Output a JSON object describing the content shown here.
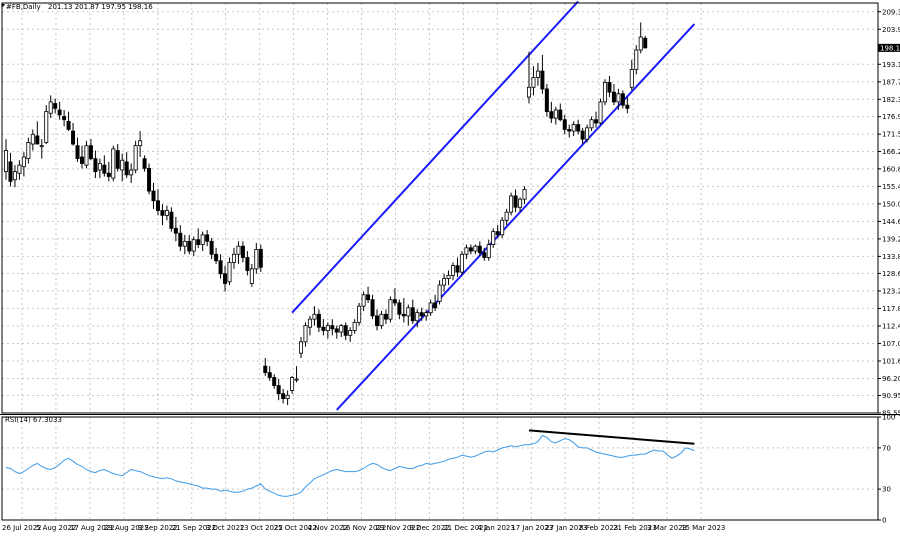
{
  "header": {
    "symbol_label": "#FB,Daily",
    "ohlc_label": "201.13 201.87 197.95 198.16"
  },
  "colors": {
    "background": "#ffffff",
    "candle_border": "#000000",
    "bull_fill": "#ffffff",
    "bear_fill": "#000000",
    "channel": "#1a1aff",
    "rsi_line": "#3d9be9",
    "divergence": "#000000",
    "grid": "#c8c8c8"
  },
  "chart_data": [
    {
      "type": "candlestick",
      "panel": "price",
      "symbol": "#FB",
      "timeframe": "Daily",
      "ylim": [
        85.55,
        212.0
      ],
      "y_ticks": [
        209.3,
        203.9,
        198.16,
        193.1,
        187.7,
        182.3,
        176.95,
        171.55,
        166.2,
        160.85,
        155.45,
        150.05,
        144.65,
        139.25,
        133.85,
        128.6,
        123.2,
        117.8,
        112.4,
        107.0,
        101.6,
        96.2,
        90.95,
        85.55
      ],
      "current_price_label": "198.16",
      "x_tick_labels": [
        "26 Jul 2022",
        "5 Aug 2022",
        "17 Aug 2022",
        "29 Aug 2022",
        "9 Sep 2022",
        "21 Sep 2022",
        "3 Oct 2022",
        "13 Oct 2022",
        "25 Oct 2022",
        "4 Nov 2022",
        "16 Nov 2022",
        "29 Nov 2022",
        "9 Dec 2022",
        "21 Dec 2022",
        "4 Jan 2023",
        "17 Jan 2023",
        "27 Jan 2023",
        "8 Feb 2023",
        "21 Feb 2023",
        "3 Mar 2023",
        "15 Mar 2023"
      ],
      "candles": [
        {
          "o": 160.0,
          "h": 170.0,
          "l": 157.5,
          "c": 166.5
        },
        {
          "o": 163.0,
          "h": 165.8,
          "l": 155.4,
          "c": 157.0
        },
        {
          "o": 157.5,
          "h": 162.0,
          "l": 155.2,
          "c": 160.0
        },
        {
          "o": 159.5,
          "h": 163.5,
          "l": 157.5,
          "c": 162.0
        },
        {
          "o": 161.5,
          "h": 166.0,
          "l": 158.5,
          "c": 164.5
        },
        {
          "o": 164.0,
          "h": 170.5,
          "l": 162.5,
          "c": 169.0
        },
        {
          "o": 168.5,
          "h": 173.0,
          "l": 166.5,
          "c": 171.5
        },
        {
          "o": 171.0,
          "h": 175.5,
          "l": 168.5,
          "c": 168.5
        },
        {
          "o": 168.0,
          "h": 170.0,
          "l": 164.0,
          "c": 168.0
        },
        {
          "o": 169.0,
          "h": 180.5,
          "l": 168.5,
          "c": 178.5
        },
        {
          "o": 178.0,
          "h": 183.5,
          "l": 176.5,
          "c": 181.5
        },
        {
          "o": 181.0,
          "h": 182.5,
          "l": 178.0,
          "c": 179.5
        },
        {
          "o": 179.0,
          "h": 181.5,
          "l": 176.0,
          "c": 177.5
        },
        {
          "o": 177.0,
          "h": 179.0,
          "l": 174.0,
          "c": 176.0
        },
        {
          "o": 175.5,
          "h": 178.5,
          "l": 172.5,
          "c": 173.0
        },
        {
          "o": 172.5,
          "h": 175.0,
          "l": 168.0,
          "c": 168.5
        },
        {
          "o": 168.0,
          "h": 170.5,
          "l": 163.0,
          "c": 164.0
        },
        {
          "o": 164.5,
          "h": 168.0,
          "l": 161.0,
          "c": 162.5
        },
        {
          "o": 162.0,
          "h": 169.5,
          "l": 161.0,
          "c": 168.0
        },
        {
          "o": 168.0,
          "h": 170.0,
          "l": 163.5,
          "c": 164.0
        },
        {
          "o": 164.0,
          "h": 166.5,
          "l": 158.0,
          "c": 160.0
        },
        {
          "o": 160.5,
          "h": 164.0,
          "l": 158.0,
          "c": 162.5
        },
        {
          "o": 162.0,
          "h": 165.0,
          "l": 158.5,
          "c": 159.5
        },
        {
          "o": 159.5,
          "h": 163.0,
          "l": 157.0,
          "c": 158.5
        },
        {
          "o": 158.0,
          "h": 168.0,
          "l": 157.0,
          "c": 167.0
        },
        {
          "o": 166.5,
          "h": 168.5,
          "l": 160.0,
          "c": 161.0
        },
        {
          "o": 160.5,
          "h": 165.5,
          "l": 157.0,
          "c": 163.5
        },
        {
          "o": 163.0,
          "h": 166.0,
          "l": 158.0,
          "c": 159.0
        },
        {
          "o": 159.0,
          "h": 162.5,
          "l": 156.5,
          "c": 160.5
        },
        {
          "o": 160.5,
          "h": 169.5,
          "l": 159.5,
          "c": 168.0
        },
        {
          "o": 168.0,
          "h": 172.5,
          "l": 164.5,
          "c": 169.5
        },
        {
          "o": 164.0,
          "h": 165.0,
          "l": 160.0,
          "c": 161.0
        },
        {
          "o": 161.0,
          "h": 162.5,
          "l": 153.0,
          "c": 154.0
        },
        {
          "o": 154.0,
          "h": 156.5,
          "l": 148.5,
          "c": 151.0
        },
        {
          "o": 151.0,
          "h": 154.5,
          "l": 146.5,
          "c": 148.0
        },
        {
          "o": 148.0,
          "h": 150.0,
          "l": 143.5,
          "c": 146.5
        },
        {
          "o": 146.5,
          "h": 149.5,
          "l": 145.0,
          "c": 148.0
        },
        {
          "o": 147.5,
          "h": 149.0,
          "l": 141.5,
          "c": 142.5
        },
        {
          "o": 142.5,
          "h": 146.0,
          "l": 138.5,
          "c": 141.0
        },
        {
          "o": 141.0,
          "h": 143.5,
          "l": 135.5,
          "c": 137.0
        },
        {
          "o": 137.0,
          "h": 140.5,
          "l": 134.5,
          "c": 138.5
        },
        {
          "o": 138.5,
          "h": 140.5,
          "l": 134.5,
          "c": 135.5
        },
        {
          "o": 135.5,
          "h": 140.0,
          "l": 134.0,
          "c": 139.0
        },
        {
          "o": 139.0,
          "h": 142.5,
          "l": 136.5,
          "c": 137.5
        },
        {
          "o": 137.5,
          "h": 141.5,
          "l": 135.5,
          "c": 140.5
        },
        {
          "o": 140.5,
          "h": 142.0,
          "l": 137.0,
          "c": 138.5
        },
        {
          "o": 138.5,
          "h": 139.5,
          "l": 133.0,
          "c": 134.5
        },
        {
          "o": 134.5,
          "h": 136.5,
          "l": 131.5,
          "c": 132.5
        },
        {
          "o": 132.5,
          "h": 134.5,
          "l": 127.0,
          "c": 128.5
        },
        {
          "o": 128.5,
          "h": 131.0,
          "l": 123.0,
          "c": 125.5
        },
        {
          "o": 126.0,
          "h": 133.5,
          "l": 125.0,
          "c": 132.0
        },
        {
          "o": 132.0,
          "h": 136.5,
          "l": 130.0,
          "c": 134.5
        },
        {
          "o": 134.5,
          "h": 138.5,
          "l": 131.5,
          "c": 137.0
        },
        {
          "o": 137.0,
          "h": 138.5,
          "l": 132.0,
          "c": 133.5
        },
        {
          "o": 133.5,
          "h": 135.5,
          "l": 128.0,
          "c": 129.5
        },
        {
          "o": 125.5,
          "h": 131.5,
          "l": 124.5,
          "c": 130.0
        },
        {
          "o": 130.0,
          "h": 138.0,
          "l": 128.5,
          "c": 136.0
        },
        {
          "o": 136.0,
          "h": 137.5,
          "l": 129.0,
          "c": 130.5
        },
        {
          "o": 100.0,
          "h": 102.5,
          "l": 97.0,
          "c": 98.0
        },
        {
          "o": 98.0,
          "h": 100.0,
          "l": 95.5,
          "c": 96.5
        },
        {
          "o": 96.5,
          "h": 97.5,
          "l": 93.0,
          "c": 94.0
        },
        {
          "o": 94.0,
          "h": 96.0,
          "l": 89.5,
          "c": 91.5
        },
        {
          "o": 91.5,
          "h": 93.0,
          "l": 88.5,
          "c": 90.0
        },
        {
          "o": 90.0,
          "h": 92.5,
          "l": 88.0,
          "c": 91.0
        },
        {
          "o": 92.5,
          "h": 97.0,
          "l": 91.5,
          "c": 96.5
        },
        {
          "o": 96.0,
          "h": 100.0,
          "l": 95.0,
          "c": 96.0
        },
        {
          "o": 104.0,
          "h": 109.0,
          "l": 102.5,
          "c": 107.5
        },
        {
          "o": 107.5,
          "h": 113.5,
          "l": 106.0,
          "c": 112.5
        },
        {
          "o": 112.0,
          "h": 115.5,
          "l": 109.5,
          "c": 114.5
        },
        {
          "o": 114.5,
          "h": 118.5,
          "l": 112.5,
          "c": 116.0
        },
        {
          "o": 116.0,
          "h": 117.5,
          "l": 110.5,
          "c": 112.0
        },
        {
          "o": 112.0,
          "h": 114.5,
          "l": 109.5,
          "c": 111.0
        },
        {
          "o": 111.0,
          "h": 113.5,
          "l": 108.5,
          "c": 112.5
        },
        {
          "o": 112.5,
          "h": 114.5,
          "l": 109.5,
          "c": 111.5
        },
        {
          "o": 111.5,
          "h": 112.5,
          "l": 108.5,
          "c": 110.5
        },
        {
          "o": 110.5,
          "h": 113.0,
          "l": 109.0,
          "c": 112.5
        },
        {
          "o": 112.5,
          "h": 113.5,
          "l": 108.0,
          "c": 109.5
        },
        {
          "o": 109.5,
          "h": 112.0,
          "l": 107.5,
          "c": 111.0
        },
        {
          "o": 111.0,
          "h": 114.5,
          "l": 110.0,
          "c": 113.5
        },
        {
          "o": 113.5,
          "h": 119.5,
          "l": 112.5,
          "c": 118.5
        },
        {
          "o": 118.5,
          "h": 123.0,
          "l": 117.0,
          "c": 122.0
        },
        {
          "o": 122.0,
          "h": 124.5,
          "l": 119.5,
          "c": 120.5
        },
        {
          "o": 120.5,
          "h": 122.0,
          "l": 114.5,
          "c": 115.5
        },
        {
          "o": 115.5,
          "h": 117.5,
          "l": 111.0,
          "c": 112.5
        },
        {
          "o": 112.5,
          "h": 117.0,
          "l": 111.5,
          "c": 116.0
        },
        {
          "o": 116.0,
          "h": 117.5,
          "l": 113.0,
          "c": 114.5
        },
        {
          "o": 114.5,
          "h": 121.5,
          "l": 113.5,
          "c": 120.5
        },
        {
          "o": 120.5,
          "h": 124.0,
          "l": 118.5,
          "c": 119.5
        },
        {
          "o": 119.5,
          "h": 120.5,
          "l": 114.5,
          "c": 116.0
        },
        {
          "o": 116.0,
          "h": 121.0,
          "l": 113.5,
          "c": 115.5
        },
        {
          "o": 115.5,
          "h": 119.0,
          "l": 112.5,
          "c": 118.0
        },
        {
          "o": 118.0,
          "h": 120.5,
          "l": 113.0,
          "c": 114.0
        },
        {
          "o": 114.0,
          "h": 117.5,
          "l": 112.0,
          "c": 116.5
        },
        {
          "o": 116.5,
          "h": 118.0,
          "l": 114.0,
          "c": 115.5
        },
        {
          "o": 115.5,
          "h": 117.5,
          "l": 114.0,
          "c": 116.5
        },
        {
          "o": 116.5,
          "h": 120.5,
          "l": 115.5,
          "c": 119.5
        },
        {
          "o": 119.5,
          "h": 122.0,
          "l": 117.0,
          "c": 118.0
        },
        {
          "o": 120.0,
          "h": 126.5,
          "l": 119.0,
          "c": 125.0
        },
        {
          "o": 125.0,
          "h": 128.5,
          "l": 123.0,
          "c": 127.0
        },
        {
          "o": 127.0,
          "h": 129.5,
          "l": 125.0,
          "c": 128.0
        },
        {
          "o": 128.0,
          "h": 132.0,
          "l": 126.5,
          "c": 131.0
        },
        {
          "o": 131.0,
          "h": 133.5,
          "l": 127.5,
          "c": 129.0
        },
        {
          "o": 129.0,
          "h": 135.5,
          "l": 128.0,
          "c": 134.5
        },
        {
          "o": 134.5,
          "h": 137.5,
          "l": 133.0,
          "c": 136.5
        },
        {
          "o": 136.5,
          "h": 137.5,
          "l": 134.5,
          "c": 135.5
        },
        {
          "o": 135.5,
          "h": 137.5,
          "l": 134.5,
          "c": 137.0
        },
        {
          "o": 137.0,
          "h": 138.5,
          "l": 134.0,
          "c": 135.0
        },
        {
          "o": 135.0,
          "h": 136.5,
          "l": 132.5,
          "c": 133.5
        },
        {
          "o": 133.5,
          "h": 139.0,
          "l": 132.5,
          "c": 137.5
        },
        {
          "o": 137.5,
          "h": 142.5,
          "l": 136.5,
          "c": 141.5
        },
        {
          "o": 141.5,
          "h": 143.5,
          "l": 139.5,
          "c": 140.5
        },
        {
          "o": 140.5,
          "h": 146.0,
          "l": 139.5,
          "c": 145.0
        },
        {
          "o": 145.0,
          "h": 148.5,
          "l": 143.5,
          "c": 147.5
        },
        {
          "o": 147.5,
          "h": 153.5,
          "l": 146.5,
          "c": 152.5
        },
        {
          "o": 152.5,
          "h": 154.5,
          "l": 147.5,
          "c": 149.0
        },
        {
          "o": 149.0,
          "h": 152.0,
          "l": 147.5,
          "c": 151.5
        },
        {
          "o": 151.5,
          "h": 155.5,
          "l": 150.0,
          "c": 154.5
        },
        {
          "o": 183.0,
          "h": 197.0,
          "l": 181.0,
          "c": 186.0
        },
        {
          "o": 186.0,
          "h": 192.5,
          "l": 183.5,
          "c": 189.0
        },
        {
          "o": 189.0,
          "h": 193.5,
          "l": 186.5,
          "c": 191.0
        },
        {
          "o": 191.0,
          "h": 196.0,
          "l": 184.0,
          "c": 185.5
        },
        {
          "o": 185.5,
          "h": 187.0,
          "l": 177.0,
          "c": 178.5
        },
        {
          "o": 178.5,
          "h": 181.5,
          "l": 175.0,
          "c": 176.5
        },
        {
          "o": 176.5,
          "h": 180.0,
          "l": 174.5,
          "c": 179.0
        },
        {
          "o": 179.0,
          "h": 181.0,
          "l": 175.5,
          "c": 176.0
        },
        {
          "o": 176.0,
          "h": 177.5,
          "l": 171.5,
          "c": 173.0
        },
        {
          "o": 173.0,
          "h": 174.5,
          "l": 170.5,
          "c": 172.5
        },
        {
          "o": 172.5,
          "h": 175.5,
          "l": 171.0,
          "c": 174.5
        },
        {
          "o": 174.5,
          "h": 176.0,
          "l": 171.5,
          "c": 172.5
        },
        {
          "o": 172.5,
          "h": 173.5,
          "l": 168.5,
          "c": 170.0
        },
        {
          "o": 170.0,
          "h": 174.5,
          "l": 169.0,
          "c": 173.5
        },
        {
          "o": 173.5,
          "h": 177.0,
          "l": 172.5,
          "c": 176.0
        },
        {
          "o": 176.0,
          "h": 178.5,
          "l": 173.5,
          "c": 175.0
        },
        {
          "o": 175.0,
          "h": 182.5,
          "l": 174.5,
          "c": 181.5
        },
        {
          "o": 181.5,
          "h": 188.5,
          "l": 180.5,
          "c": 187.5
        },
        {
          "o": 187.5,
          "h": 189.5,
          "l": 183.0,
          "c": 184.5
        },
        {
          "o": 184.5,
          "h": 187.0,
          "l": 180.5,
          "c": 181.5
        },
        {
          "o": 181.5,
          "h": 185.5,
          "l": 179.0,
          "c": 184.0
        },
        {
          "o": 184.0,
          "h": 185.0,
          "l": 179.5,
          "c": 180.5
        },
        {
          "o": 180.5,
          "h": 183.0,
          "l": 178.0,
          "c": 179.5
        },
        {
          "o": 186.0,
          "h": 194.5,
          "l": 185.0,
          "c": 191.5
        },
        {
          "o": 191.5,
          "h": 199.0,
          "l": 190.0,
          "c": 197.5
        },
        {
          "o": 197.5,
          "h": 206.0,
          "l": 196.5,
          "c": 201.5
        },
        {
          "o": 201.13,
          "h": 201.87,
          "l": 197.95,
          "c": 198.16
        }
      ],
      "channel_lines": [
        {
          "name": "upper",
          "start": {
            "bar": 64,
            "price": 116.5
          },
          "end": {
            "bar": 128,
            "price": 212.5
          }
        },
        {
          "name": "lower",
          "start": {
            "bar": 74,
            "price": 86.5
          },
          "end": {
            "bar": 154,
            "price": 205.5
          }
        }
      ]
    },
    {
      "type": "line",
      "panel": "rsi",
      "label": "RSI(14) 67.3033",
      "ylim": [
        0,
        100
      ],
      "y_ticks": [
        100,
        70,
        30,
        0
      ],
      "values": [
        51,
        50,
        47,
        45,
        47,
        50,
        53,
        55,
        52,
        50,
        49,
        51,
        54,
        58,
        60,
        57,
        54,
        52,
        49,
        47,
        46,
        48,
        49,
        47,
        45,
        44,
        43,
        46,
        49,
        48,
        47,
        45,
        43,
        42,
        41,
        40,
        41,
        40,
        38,
        37,
        36,
        35,
        34,
        33,
        31,
        31,
        30,
        30,
        28,
        29,
        28,
        27,
        27,
        28,
        30,
        31,
        33,
        35,
        30,
        28,
        26,
        24,
        23,
        23,
        24,
        25,
        27,
        32,
        36,
        40,
        42,
        44,
        46,
        48,
        49,
        48,
        47,
        47,
        47,
        48,
        50,
        53,
        55,
        54,
        51,
        49,
        48,
        50,
        52,
        51,
        50,
        50,
        52,
        53,
        55,
        54,
        55,
        56,
        57,
        59,
        60,
        61,
        63,
        62,
        61,
        62,
        64,
        66,
        67,
        66,
        68,
        70,
        71,
        72,
        71,
        72,
        73,
        73,
        74,
        76,
        82,
        80,
        76,
        75,
        77,
        79,
        78,
        75,
        71,
        70,
        70,
        68,
        66,
        65,
        64,
        63,
        62,
        61,
        61,
        62,
        63,
        63,
        64,
        64,
        66,
        68,
        67,
        67,
        63,
        60,
        62,
        65,
        70,
        69,
        67.3
      ],
      "divergence_line": {
        "start": {
          "bar": 117,
          "value": 87
        },
        "end": {
          "bar": 154,
          "value": 74
        }
      }
    }
  ]
}
